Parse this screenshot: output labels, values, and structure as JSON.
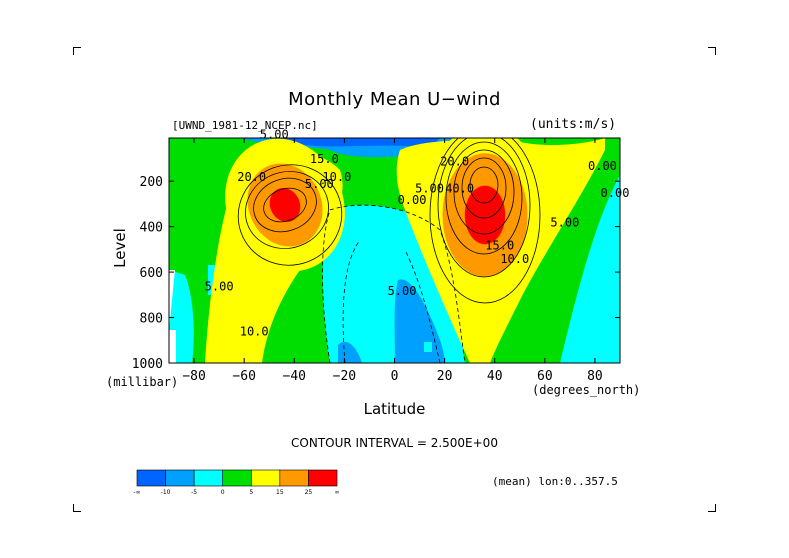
{
  "title": "Monthly Mean U−wind",
  "dataset": "[UWND_1981-12_NCEP.nc]",
  "units": "(units:m/s)",
  "contour_interval": "CONTOUR INTERVAL = 2.500E+00",
  "mean_label": "(mean) lon:0..357.5",
  "colors": {
    "fill_levels": [
      "#0064ff",
      "#00a0ff",
      "#00ffff",
      "#00dd00",
      "#ffff00",
      "#ff9900",
      "#ff0000"
    ]
  },
  "chart_data": {
    "type": "contour",
    "title": "Monthly Mean U−wind",
    "xlabel": "Latitude",
    "xunit": "(degrees_north)",
    "ylabel": "Level",
    "yunit": "(millibar)",
    "xlim": [
      -90,
      90
    ],
    "ylim": [
      1000,
      10
    ],
    "x_ticks": [
      -80,
      -60,
      -40,
      -20,
      0,
      20,
      40,
      60,
      80
    ],
    "x_tick_labels": [
      "−80",
      "−60",
      "−40",
      "−20",
      "0",
      "20",
      "40",
      "60",
      "80"
    ],
    "y_ticks": [
      200,
      400,
      600,
      800,
      1000
    ],
    "y_tick_labels": [
      "200",
      "400",
      "600",
      "800",
      "1000"
    ],
    "contour_interval": 2.5,
    "jets": [
      {
        "lat": -48,
        "level": 230,
        "peak": 25
      },
      {
        "lat": 33,
        "level": 200,
        "peak": 40
      }
    ],
    "contour_labels": [
      {
        "text": "5.00",
        "lat": -30,
        "level": 230
      },
      {
        "text": "10.0",
        "lat": -23,
        "level": 200
      },
      {
        "text": "20.0",
        "lat": -57,
        "level": 200
      },
      {
        "text": "15.0",
        "lat": -28,
        "level": 120
      },
      {
        "text": "5.00",
        "lat": -48,
        "level": 12
      },
      {
        "text": "5.00",
        "lat": -70,
        "level": 680
      },
      {
        "text": "10.0",
        "lat": -56,
        "level": 880
      },
      {
        "text": "0.00",
        "lat": 7,
        "level": 300
      },
      {
        "text": "5.00",
        "lat": 3,
        "level": 700
      },
      {
        "text": "5.00",
        "lat": 14,
        "level": 250
      },
      {
        "text": "20.0",
        "lat": 24,
        "level": 130
      },
      {
        "text": "40.0",
        "lat": 26,
        "level": 250
      },
      {
        "text": "15.0",
        "lat": 42,
        "level": 500
      },
      {
        "text": "10.0",
        "lat": 48,
        "level": 560
      },
      {
        "text": "5.00",
        "lat": 68,
        "level": 400
      },
      {
        "text": "0.00",
        "lat": 83,
        "level": 150
      },
      {
        "text": "0.00",
        "lat": 88,
        "level": 270
      }
    ],
    "colorbar": {
      "labels": [
        "-∞",
        "-10",
        "-5",
        "0",
        "5",
        "15",
        "25",
        "∞"
      ]
    }
  }
}
